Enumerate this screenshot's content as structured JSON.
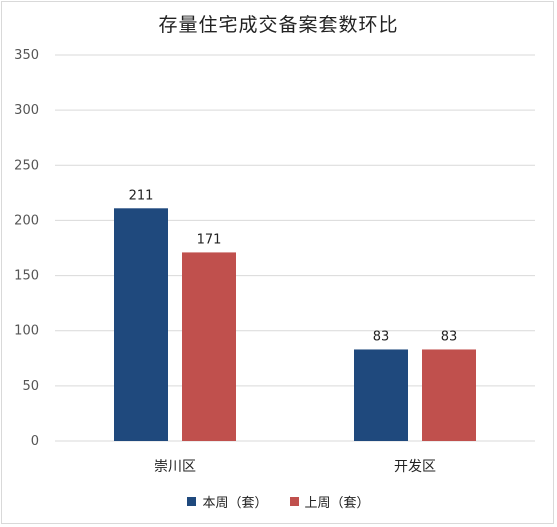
{
  "chart_data": {
    "type": "bar",
    "title": "存量住宅成交备案套数环比",
    "categories": [
      "崇川区",
      "开发区"
    ],
    "series": [
      {
        "name": "本周（套）",
        "values": [
          211,
          83
        ],
        "color": "#1f497d"
      },
      {
        "name": "上周（套）",
        "values": [
          171,
          83
        ],
        "color": "#c0504d"
      }
    ],
    "ylim": [
      0,
      350
    ],
    "yticks": [
      0,
      50,
      100,
      150,
      200,
      250,
      300,
      350
    ],
    "grid": true,
    "legend": "bottom",
    "data_labels": true
  }
}
